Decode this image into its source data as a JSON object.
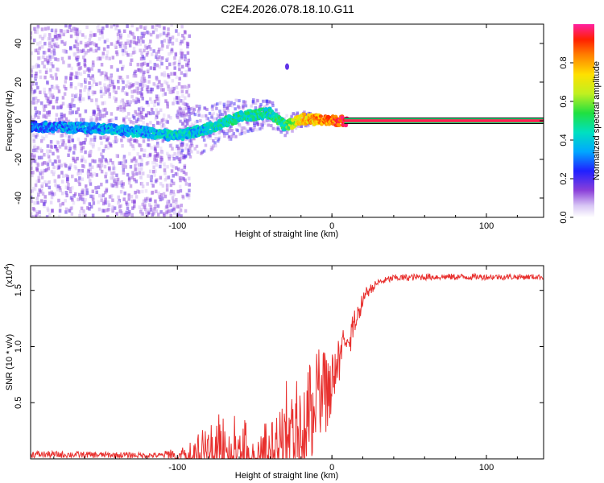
{
  "title": "C2E4.2026.078.18.10.G11",
  "colors": {
    "snr_line": "#e8302e",
    "axis": "#000000",
    "spectro_low": "#9b59d6",
    "spectro_mid": "#00c8c8",
    "spectro_high": "#ff2020"
  },
  "chart_data": [
    {
      "id": "spectrogram",
      "type": "heatmap",
      "xlabel": "Height of straight line (km)",
      "ylabel": "Frequency (Hz)",
      "xlim": [
        -195,
        137
      ],
      "ylim": [
        -50,
        50
      ],
      "x_ticks": [
        -100,
        0,
        100
      ],
      "x_tick_labels": [
        "-100",
        "0",
        "100"
      ],
      "y_ticks": [
        -40,
        -20,
        0,
        20,
        40
      ],
      "y_tick_labels": [
        "-40",
        "-20",
        "0",
        "20",
        "40"
      ],
      "colorbar": {
        "label": "Normalized spectral amplitude",
        "range": [
          0.0,
          1.0
        ],
        "ticks": [
          0.0,
          0.2,
          0.4,
          0.6,
          0.8
        ],
        "tick_labels": [
          "0.0",
          "0.2",
          "0.4",
          "0.6",
          "0.8"
        ]
      },
      "ridge": {
        "description_points_km": [
          -195,
          -150,
          -120,
          -100,
          -80,
          -60,
          -40,
          -30,
          -20,
          0,
          10,
          137
        ],
        "frequency_hz": [
          -3,
          -4,
          -6,
          -8,
          -4,
          2,
          4,
          -3,
          1,
          0,
          0,
          0
        ],
        "amplitude": [
          0.3,
          0.35,
          0.35,
          0.4,
          0.4,
          0.45,
          0.45,
          0.5,
          0.75,
          0.85,
          0.95,
          0.95
        ]
      }
    },
    {
      "id": "snr",
      "type": "line",
      "xlabel": "Height of straight line (km)",
      "ylabel": "SNR (10 * v/v)",
      "y_multiplier_label": "(x10",
      "y_multiplier_exp": "4",
      "y_multiplier_close": ")",
      "xlim": [
        -195,
        137
      ],
      "ylim": [
        0,
        1.72
      ],
      "x_ticks": [
        -100,
        0,
        100
      ],
      "x_tick_labels": [
        "-100",
        "0",
        "100"
      ],
      "y_ticks": [
        0.5,
        1.0,
        1.5
      ],
      "y_tick_labels": [
        "0.5",
        "1.0",
        "1.5"
      ],
      "envelope_x": [
        -195,
        -110,
        -100,
        -90,
        -80,
        -70,
        -60,
        -50,
        -40,
        -35,
        -30,
        -25,
        -20,
        -15,
        -10,
        -5,
        0,
        5,
        10,
        15,
        20,
        30,
        40,
        60,
        100,
        137
      ],
      "envelope_y": [
        0.04,
        0.03,
        0.06,
        0.1,
        0.25,
        0.3,
        0.25,
        0.18,
        0.2,
        0.4,
        0.5,
        0.65,
        0.75,
        0.7,
        0.8,
        0.85,
        0.9,
        1.0,
        1.15,
        1.3,
        1.45,
        1.57,
        1.61,
        1.62,
        1.62,
        1.62
      ],
      "noise_x": [
        -195,
        -110,
        -100,
        -80,
        -60,
        -40,
        -30,
        -20,
        -10,
        0,
        10,
        20,
        30,
        137
      ],
      "noise_amp": [
        0.04,
        0.03,
        0.1,
        0.35,
        0.35,
        0.35,
        0.55,
        0.65,
        0.55,
        0.4,
        0.2,
        0.08,
        0.04,
        0.03
      ]
    }
  ]
}
